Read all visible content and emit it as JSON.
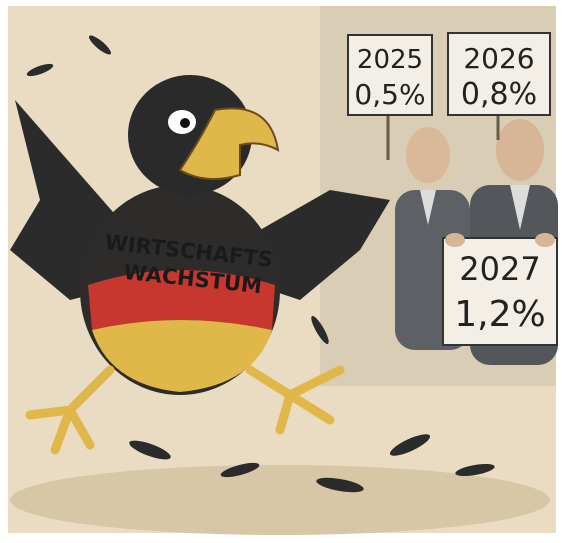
{
  "eagle": {
    "label": [
      "WIRTSCHAFTS",
      "WACHSTUM"
    ]
  },
  "signs": [
    {
      "year": "2025",
      "value": "0,5%"
    },
    {
      "year": "2026",
      "value": "0,8%"
    },
    {
      "year": "2027",
      "value": "1,2%"
    }
  ]
}
